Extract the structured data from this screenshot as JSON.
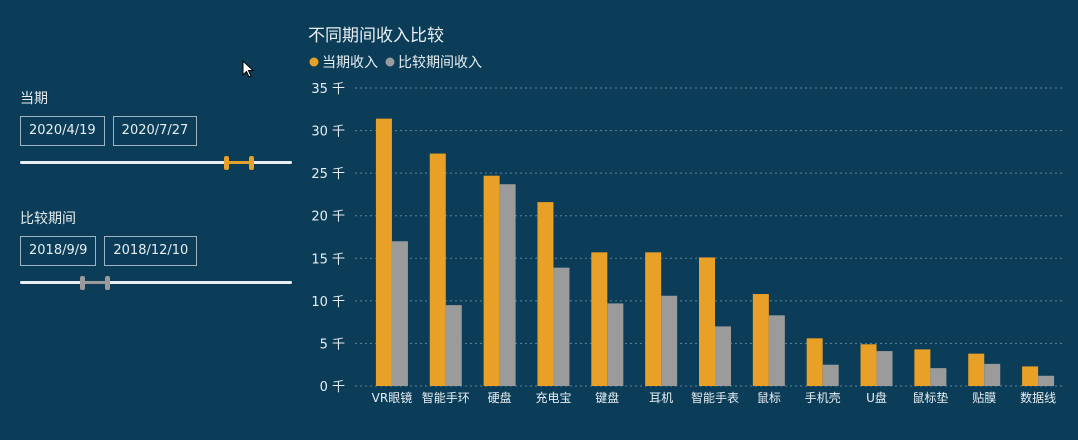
{
  "filters": {
    "current": {
      "label": "当期",
      "start": "2020/4/19",
      "end": "2020/7/27",
      "range": [
        0.76,
        0.85
      ],
      "color": "#e5a12a"
    },
    "comparison": {
      "label": "比较期间",
      "start": "2018/9/9",
      "end": "2018/12/10",
      "range": [
        0.23,
        0.32
      ],
      "color": "#9a9a9a"
    }
  },
  "chart_data": {
    "type": "bar",
    "title": "不同期间收入比较",
    "legend_position": "top-left",
    "categories": [
      "VR眼镜",
      "智能手环",
      "硬盘",
      "充电宝",
      "键盘",
      "耳机",
      "智能手表",
      "鼠标",
      "手机壳",
      "U盘",
      "鼠标垫",
      "贴膜",
      "数据线"
    ],
    "series": [
      {
        "name": "当期收入",
        "color": "#e8a027",
        "values": [
          31.4,
          27.3,
          24.7,
          21.6,
          15.7,
          15.7,
          15.1,
          10.8,
          5.6,
          4.9,
          4.3,
          3.8,
          2.3
        ]
      },
      {
        "name": "比较期间收入",
        "color": "#9b9b9b",
        "values": [
          17.0,
          9.5,
          23.7,
          13.9,
          9.7,
          10.6,
          7.0,
          8.3,
          2.5,
          4.1,
          2.1,
          2.6,
          1.2
        ]
      }
    ],
    "ylim": [
      0,
      35
    ],
    "yticks": [
      {
        "value": 0,
        "label": "0 千"
      },
      {
        "value": 5,
        "label": "5 千"
      },
      {
        "value": 10,
        "label": "10 千"
      },
      {
        "value": 15,
        "label": "15 千"
      },
      {
        "value": 20,
        "label": "20 千"
      },
      {
        "value": 25,
        "label": "25 千"
      },
      {
        "value": 30,
        "label": "30 千"
      },
      {
        "value": 35,
        "label": "35 千"
      }
    ],
    "grid": true
  }
}
